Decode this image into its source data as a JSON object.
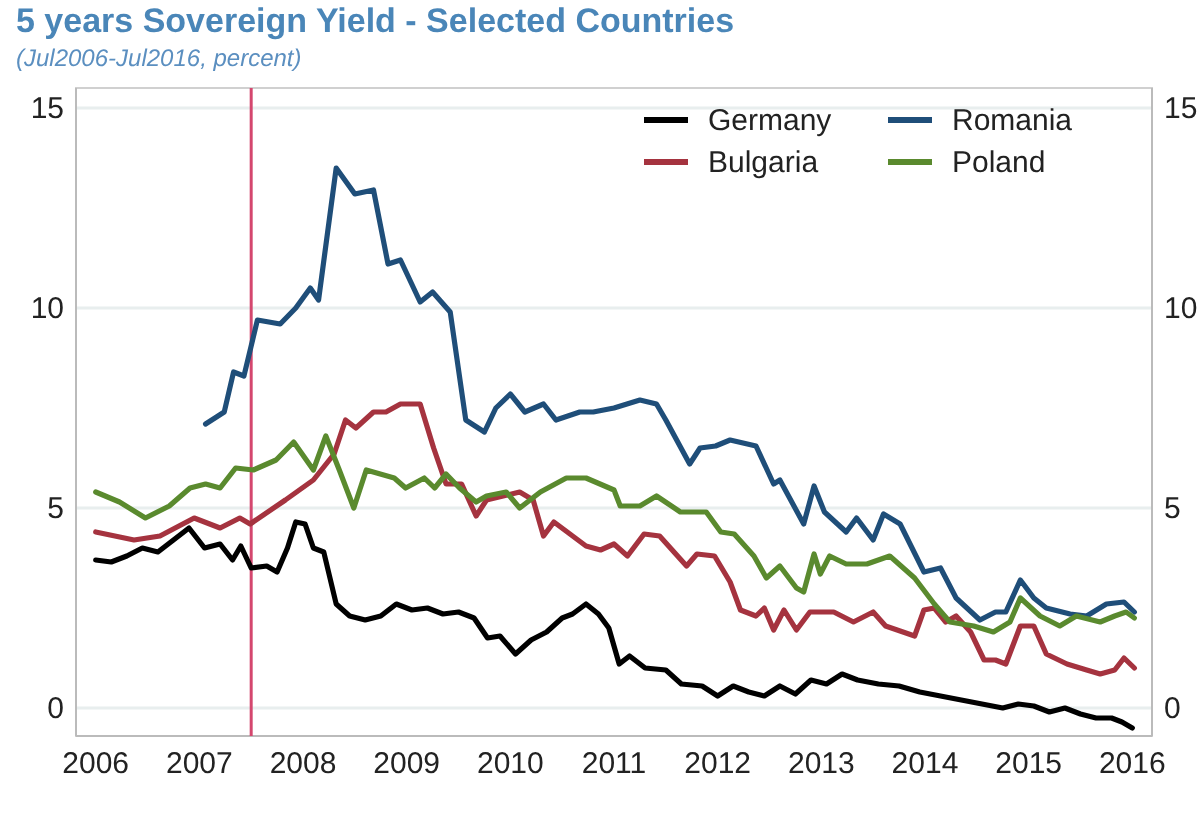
{
  "chart_data": {
    "type": "line",
    "title": "5 years Sovereign Yield - Selected Countries",
    "subtitle": "(Jul2006-Jul2016, percent)",
    "xlim": [
      2005.81,
      2016.19
    ],
    "xticks": [
      2006,
      2007,
      2008,
      2009,
      2010,
      2011,
      2012,
      2013,
      2014,
      2015,
      2016
    ],
    "ylim": [
      -0.7,
      15.5
    ],
    "yticks": [
      0,
      5,
      10,
      15
    ],
    "y2lim": [
      -0.7,
      15.5
    ],
    "y2ticks": [
      0,
      5,
      10,
      15
    ],
    "grid": "y",
    "legend": "top right",
    "line_style": "solid",
    "marker": "none",
    "ref_lines": [
      {
        "axis": "x",
        "value": 2007.5,
        "color": "#d4476e"
      }
    ],
    "series": [
      {
        "name": "Germany",
        "color": "#000000",
        "x": [
          2006.0,
          2006.15,
          2006.3,
          2006.45,
          2006.6,
          2006.75,
          2006.9,
          2007.05,
          2007.2,
          2007.32,
          2007.4,
          2007.5,
          2007.65,
          2007.75,
          2007.85,
          2007.93,
          2008.02,
          2008.1,
          2008.2,
          2008.32,
          2008.45,
          2008.6,
          2008.75,
          2008.9,
          2009.05,
          2009.2,
          2009.35,
          2009.5,
          2009.65,
          2009.78,
          2009.9,
          2010.05,
          2010.2,
          2010.35,
          2010.5,
          2010.6,
          2010.73,
          2010.85,
          2010.95,
          2011.05,
          2011.15,
          2011.3,
          2011.5,
          2011.65,
          2011.85,
          2012.0,
          2012.15,
          2012.3,
          2012.45,
          2012.6,
          2012.75,
          2012.9,
          2013.05,
          2013.2,
          2013.35,
          2013.55,
          2013.75,
          2013.95,
          2014.15,
          2014.35,
          2014.55,
          2014.75,
          2014.9,
          2015.05,
          2015.2,
          2015.35,
          2015.5,
          2015.65,
          2015.8,
          2015.9,
          2016.0
        ],
        "values": [
          3.7,
          3.65,
          3.8,
          4.0,
          3.9,
          4.2,
          4.5,
          4.0,
          4.1,
          3.7,
          4.05,
          3.5,
          3.55,
          3.4,
          4.0,
          4.65,
          4.6,
          4.0,
          3.9,
          2.6,
          2.3,
          2.2,
          2.3,
          2.6,
          2.45,
          2.5,
          2.35,
          2.4,
          2.25,
          1.75,
          1.8,
          1.35,
          1.7,
          1.9,
          2.25,
          2.35,
          2.6,
          2.35,
          2.0,
          1.1,
          1.3,
          1.0,
          0.95,
          0.6,
          0.55,
          0.3,
          0.55,
          0.4,
          0.3,
          0.55,
          0.35,
          0.7,
          0.6,
          0.85,
          0.7,
          0.6,
          0.55,
          0.4,
          0.3,
          0.2,
          0.1,
          0.0,
          0.1,
          0.05,
          -0.1,
          0.0,
          -0.15,
          -0.25,
          -0.25,
          -0.35,
          -0.5
        ]
      },
      {
        "name": "Romania",
        "color": "#1f4e79",
        "x": [
          2007.06,
          2007.24,
          2007.33,
          2007.43,
          2007.56,
          2007.78,
          2007.93,
          2008.07,
          2008.15,
          2008.32,
          2008.5,
          2008.68,
          2008.82,
          2008.94,
          2009.13,
          2009.25,
          2009.42,
          2009.57,
          2009.75,
          2009.86,
          2010.0,
          2010.14,
          2010.32,
          2010.44,
          2010.67,
          2010.8,
          2011.0,
          2011.25,
          2011.41,
          2011.5,
          2011.73,
          2011.83,
          2011.98,
          2012.12,
          2012.37,
          2012.54,
          2012.6,
          2012.83,
          2012.93,
          2013.03,
          2013.24,
          2013.34,
          2013.5,
          2013.6,
          2013.76,
          2013.99,
          2014.15,
          2014.3,
          2014.53,
          2014.68,
          2014.78,
          2014.92,
          2015.05,
          2015.17,
          2015.4,
          2015.56,
          2015.75,
          2015.92,
          2016.02
        ],
        "values": [
          7.1,
          7.4,
          8.4,
          8.3,
          9.7,
          9.6,
          10.0,
          10.5,
          10.2,
          13.5,
          12.85,
          12.95,
          11.1,
          11.2,
          10.15,
          10.4,
          9.9,
          7.2,
          6.9,
          7.5,
          7.85,
          7.4,
          7.6,
          7.2,
          7.4,
          7.4,
          7.5,
          7.7,
          7.6,
          7.2,
          6.1,
          6.5,
          6.55,
          6.7,
          6.55,
          5.6,
          5.7,
          4.6,
          5.55,
          4.9,
          4.4,
          4.75,
          4.2,
          4.85,
          4.6,
          3.4,
          3.5,
          2.75,
          2.2,
          2.4,
          2.4,
          3.2,
          2.75,
          2.5,
          2.35,
          2.3,
          2.6,
          2.65,
          2.4
        ]
      },
      {
        "name": "Bulgaria",
        "color": "#a5333f",
        "x": [
          2006.0,
          2006.37,
          2006.62,
          2006.95,
          2007.2,
          2007.39,
          2007.49,
          2007.83,
          2008.1,
          2008.3,
          2008.41,
          2008.51,
          2008.68,
          2008.8,
          2008.94,
          2009.13,
          2009.26,
          2009.38,
          2009.53,
          2009.67,
          2009.77,
          2010.09,
          2010.22,
          2010.32,
          2010.42,
          2010.73,
          2010.87,
          2011.0,
          2011.13,
          2011.29,
          2011.44,
          2011.7,
          2011.8,
          2011.97,
          2012.12,
          2012.22,
          2012.37,
          2012.45,
          2012.54,
          2012.64,
          2012.76,
          2012.89,
          2013.12,
          2013.31,
          2013.5,
          2013.62,
          2013.9,
          2013.99,
          2014.09,
          2014.2,
          2014.3,
          2014.44,
          2014.57,
          2014.68,
          2014.78,
          2014.92,
          2015.05,
          2015.17,
          2015.37,
          2015.56,
          2015.69,
          2015.83,
          2015.92,
          2016.02
        ],
        "values": [
          4.4,
          4.2,
          4.3,
          4.75,
          4.5,
          4.75,
          4.6,
          5.2,
          5.7,
          6.35,
          7.2,
          7.0,
          7.4,
          7.4,
          7.6,
          7.6,
          6.5,
          5.6,
          5.6,
          4.8,
          5.2,
          5.4,
          5.2,
          4.3,
          4.65,
          4.05,
          3.95,
          4.1,
          3.8,
          4.35,
          4.3,
          3.55,
          3.85,
          3.8,
          3.15,
          2.45,
          2.3,
          2.5,
          1.95,
          2.45,
          1.95,
          2.4,
          2.4,
          2.15,
          2.4,
          2.05,
          1.8,
          2.45,
          2.5,
          2.15,
          2.3,
          1.9,
          1.2,
          1.2,
          1.1,
          2.05,
          2.05,
          1.35,
          1.1,
          0.95,
          0.85,
          0.95,
          1.25,
          1.0
        ]
      },
      {
        "name": "Poland",
        "color": "#5a8a2e",
        "x": [
          2006.0,
          2006.23,
          2006.48,
          2006.71,
          2006.91,
          2007.06,
          2007.2,
          2007.35,
          2007.52,
          2007.74,
          2007.91,
          2008.1,
          2008.22,
          2008.35,
          2008.49,
          2008.61,
          2008.88,
          2008.99,
          2009.17,
          2009.27,
          2009.38,
          2009.51,
          2009.67,
          2009.77,
          2009.96,
          2010.09,
          2010.29,
          2010.54,
          2010.73,
          2011.0,
          2011.06,
          2011.25,
          2011.41,
          2011.64,
          2011.89,
          2012.03,
          2012.16,
          2012.35,
          2012.47,
          2012.6,
          2012.76,
          2012.83,
          2012.93,
          2012.99,
          2013.08,
          2013.24,
          2013.44,
          2013.66,
          2013.9,
          2014.09,
          2014.24,
          2014.47,
          2014.66,
          2014.82,
          2014.92,
          2015.11,
          2015.3,
          2015.46,
          2015.69,
          2015.83,
          2015.94,
          2016.02
        ],
        "values": [
          5.4,
          5.15,
          4.75,
          5.05,
          5.5,
          5.6,
          5.5,
          6.0,
          5.95,
          6.2,
          6.65,
          5.95,
          6.8,
          5.95,
          5.0,
          5.95,
          5.75,
          5.5,
          5.75,
          5.5,
          5.85,
          5.5,
          5.15,
          5.3,
          5.4,
          5.0,
          5.4,
          5.75,
          5.75,
          5.45,
          5.05,
          5.05,
          5.3,
          4.9,
          4.9,
          4.4,
          4.35,
          3.8,
          3.25,
          3.55,
          3.0,
          2.9,
          3.85,
          3.35,
          3.8,
          3.6,
          3.6,
          3.8,
          3.25,
          2.6,
          2.15,
          2.05,
          1.9,
          2.15,
          2.75,
          2.3,
          2.05,
          2.3,
          2.15,
          2.3,
          2.4,
          2.25
        ]
      }
    ]
  }
}
